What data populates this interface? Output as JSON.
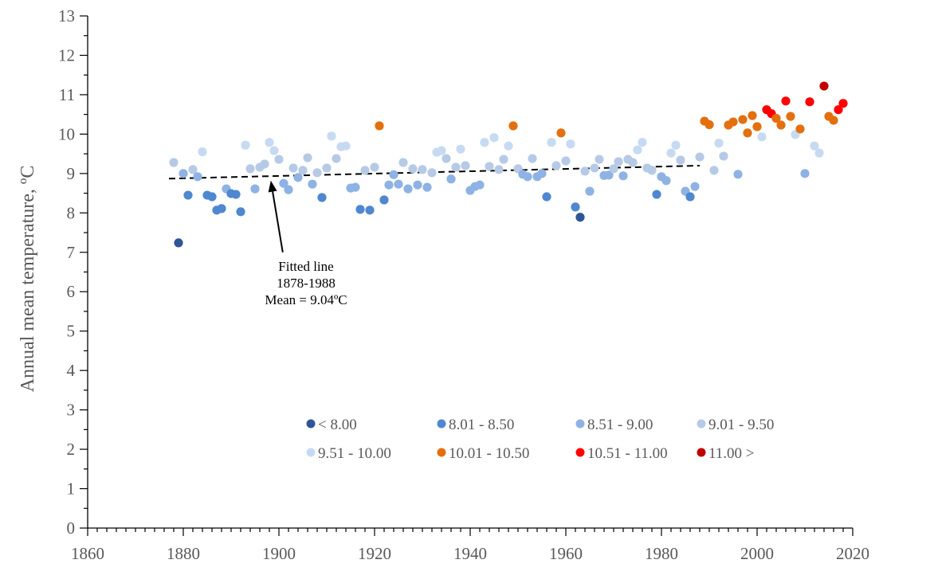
{
  "chart_data": {
    "type": "scatter",
    "title": "",
    "xlabel": "",
    "ylabel": "Annual mean temperature, ºC",
    "xlim": [
      1860,
      2020
    ],
    "ylim": [
      0,
      13
    ],
    "x_ticks": [
      1860,
      1880,
      1900,
      1920,
      1940,
      1960,
      1980,
      2000,
      2020
    ],
    "x_tick_labels": [
      "1860",
      "1880",
      "1900",
      "1920",
      "1940",
      "1960",
      "1980",
      "2000",
      "2020"
    ],
    "y_ticks": [
      0,
      1,
      2,
      3,
      4,
      5,
      6,
      7,
      8,
      9,
      10,
      11,
      12,
      13
    ],
    "y_tick_labels": [
      "0",
      "1",
      "2",
      "3",
      "4",
      "5",
      "6",
      "7",
      "8",
      "9",
      "10",
      "11",
      "12",
      "13"
    ],
    "x_minor_step": 2,
    "y_minor_step": 0.5,
    "grid": false,
    "legend_position": "bottom-center",
    "categories": [
      {
        "id": "lt8",
        "label": "< 8.00",
        "color": "#2F5597",
        "min": null,
        "max": 8.0
      },
      {
        "id": "c801",
        "label": "8.01 - 8.50",
        "color": "#4F87D0",
        "min": 8.0,
        "max": 8.5
      },
      {
        "id": "c851",
        "label": "8.51 - 9.00",
        "color": "#8EB2E3",
        "min": 8.5,
        "max": 9.0
      },
      {
        "id": "c901",
        "label": "9.01 - 9.50",
        "color": "#B6CAE6",
        "min": 9.0,
        "max": 9.5
      },
      {
        "id": "c951",
        "label": "9.51 - 10.00",
        "color": "#C7DAF2",
        "min": 9.5,
        "max": 10.0
      },
      {
        "id": "c1001",
        "label": "10.01 - 10.50",
        "color": "#E46F0F",
        "min": 10.0,
        "max": 10.5
      },
      {
        "id": "c1051",
        "label": "10.51 - 11.00",
        "color": "#FF0000",
        "min": 10.5,
        "max": 11.0
      },
      {
        "id": "gt11",
        "label": "11.00 >",
        "color": "#C00000",
        "min": 11.0,
        "max": null
      }
    ],
    "series": [
      {
        "name": "Annual mean temperature",
        "points": [
          [
            1878,
            9.28
          ],
          [
            1879,
            7.24
          ],
          [
            1880,
            9.0
          ],
          [
            1881,
            8.45
          ],
          [
            1882,
            9.1
          ],
          [
            1883,
            8.92
          ],
          [
            1884,
            9.55
          ],
          [
            1885,
            8.45
          ],
          [
            1886,
            8.41
          ],
          [
            1887,
            8.07
          ],
          [
            1888,
            8.11
          ],
          [
            1889,
            8.61
          ],
          [
            1890,
            8.49
          ],
          [
            1891,
            8.47
          ],
          [
            1892,
            8.03
          ],
          [
            1893,
            9.72
          ],
          [
            1894,
            9.12
          ],
          [
            1895,
            8.61
          ],
          [
            1896,
            9.16
          ],
          [
            1897,
            9.24
          ],
          [
            1898,
            9.79
          ],
          [
            1899,
            9.58
          ],
          [
            1900,
            9.36
          ],
          [
            1901,
            8.75
          ],
          [
            1902,
            8.59
          ],
          [
            1903,
            9.14
          ],
          [
            1904,
            8.9
          ],
          [
            1905,
            9.08
          ],
          [
            1906,
            9.4
          ],
          [
            1907,
            8.73
          ],
          [
            1908,
            9.02
          ],
          [
            1909,
            8.39
          ],
          [
            1910,
            9.14
          ],
          [
            1911,
            9.95
          ],
          [
            1912,
            9.38
          ],
          [
            1913,
            9.68
          ],
          [
            1914,
            9.7
          ],
          [
            1915,
            8.63
          ],
          [
            1916,
            8.65
          ],
          [
            1917,
            8.09
          ],
          [
            1918,
            9.08
          ],
          [
            1919,
            8.07
          ],
          [
            1920,
            9.16
          ],
          [
            1921,
            10.21
          ],
          [
            1922,
            8.33
          ],
          [
            1923,
            8.71
          ],
          [
            1924,
            8.97
          ],
          [
            1925,
            8.73
          ],
          [
            1926,
            9.28
          ],
          [
            1927,
            8.61
          ],
          [
            1928,
            9.12
          ],
          [
            1929,
            8.71
          ],
          [
            1930,
            9.1
          ],
          [
            1931,
            8.65
          ],
          [
            1932,
            9.02
          ],
          [
            1933,
            9.54
          ],
          [
            1934,
            9.58
          ],
          [
            1935,
            9.38
          ],
          [
            1936,
            8.86
          ],
          [
            1937,
            9.16
          ],
          [
            1938,
            9.62
          ],
          [
            1939,
            9.2
          ],
          [
            1940,
            8.57
          ],
          [
            1941,
            8.67
          ],
          [
            1942,
            8.71
          ],
          [
            1943,
            9.79
          ],
          [
            1944,
            9.18
          ],
          [
            1945,
            9.91
          ],
          [
            1946,
            9.1
          ],
          [
            1947,
            9.36
          ],
          [
            1948,
            9.7
          ],
          [
            1949,
            10.21
          ],
          [
            1950,
            9.12
          ],
          [
            1951,
            8.98
          ],
          [
            1952,
            8.92
          ],
          [
            1953,
            9.38
          ],
          [
            1954,
            8.92
          ],
          [
            1955,
            9.0
          ],
          [
            1956,
            8.41
          ],
          [
            1957,
            9.79
          ],
          [
            1958,
            9.2
          ],
          [
            1959,
            10.03
          ],
          [
            1960,
            9.32
          ],
          [
            1961,
            9.75
          ],
          [
            1962,
            8.15
          ],
          [
            1963,
            7.89
          ],
          [
            1964,
            9.06
          ],
          [
            1965,
            8.55
          ],
          [
            1966,
            9.14
          ],
          [
            1967,
            9.36
          ],
          [
            1968,
            8.95
          ],
          [
            1969,
            8.96
          ],
          [
            1970,
            9.12
          ],
          [
            1971,
            9.3
          ],
          [
            1972,
            8.94
          ],
          [
            1973,
            9.36
          ],
          [
            1974,
            9.28
          ],
          [
            1975,
            9.6
          ],
          [
            1976,
            9.79
          ],
          [
            1977,
            9.14
          ],
          [
            1978,
            9.08
          ],
          [
            1979,
            8.47
          ],
          [
            1980,
            8.92
          ],
          [
            1981,
            8.82
          ],
          [
            1982,
            9.52
          ],
          [
            1983,
            9.72
          ],
          [
            1984,
            9.34
          ],
          [
            1985,
            8.55
          ],
          [
            1986,
            8.41
          ],
          [
            1987,
            8.67
          ],
          [
            1988,
            9.42
          ],
          [
            1989,
            10.33
          ],
          [
            1990,
            10.24
          ],
          [
            1991,
            9.08
          ],
          [
            1992,
            9.77
          ],
          [
            1993,
            9.44
          ],
          [
            1994,
            10.23
          ],
          [
            1995,
            10.31
          ],
          [
            1996,
            8.98
          ],
          [
            1997,
            10.37
          ],
          [
            1998,
            10.03
          ],
          [
            1999,
            10.47
          ],
          [
            2000,
            10.19
          ],
          [
            2001,
            9.93
          ],
          [
            2002,
            10.62
          ],
          [
            2003,
            10.52
          ],
          [
            2004,
            10.4
          ],
          [
            2005,
            10.23
          ],
          [
            2006,
            10.84
          ],
          [
            2007,
            10.45
          ],
          [
            2008,
            9.99
          ],
          [
            2009,
            10.13
          ],
          [
            2010,
            9.0
          ],
          [
            2011,
            10.82
          ],
          [
            2012,
            9.7
          ],
          [
            2013,
            9.52
          ],
          [
            2014,
            11.22
          ],
          [
            2015,
            10.45
          ],
          [
            2016,
            10.35
          ],
          [
            2017,
            10.62
          ],
          [
            2018,
            10.78
          ]
        ]
      }
    ],
    "fitted_line": {
      "name": "Fitted line 1878-1988",
      "style": "dashed",
      "color": "#000000",
      "x": [
        1877,
        1988
      ],
      "y": [
        8.87,
        9.2
      ]
    },
    "annotation": {
      "lines": [
        "Fitted line",
        "1878-1988",
        "Mean = 9.04ºC"
      ],
      "arrow_from": [
        1900.8,
        7.0
      ],
      "arrow_to": [
        1898.3,
        8.82
      ]
    }
  }
}
